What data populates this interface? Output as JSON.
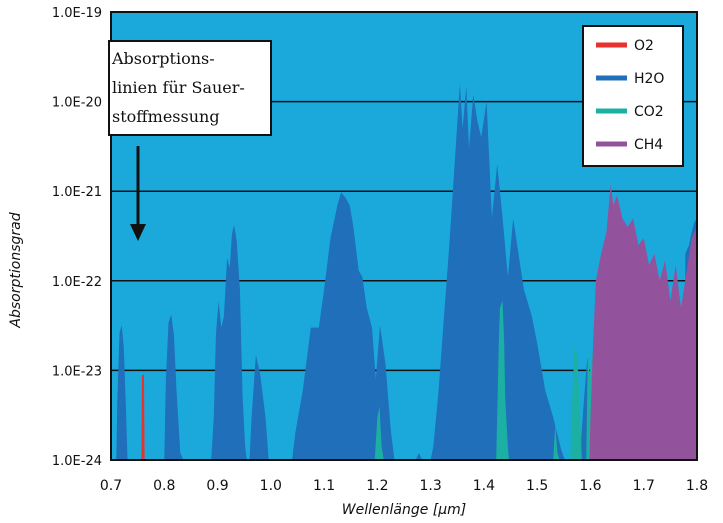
{
  "chart_data": {
    "type": "area",
    "xlabel": "Wellenlänge [μm]",
    "ylabel": "Absorptionsgrad",
    "xlim": [
      0.7,
      1.8
    ],
    "ylim": [
      1e-24,
      1e-19
    ],
    "yscale": "log",
    "x_ticks": [
      "0.7",
      "0.8",
      "0.9",
      "1.0",
      "1.1",
      "1.2",
      "1.3",
      "1.4",
      "1.5",
      "1.6",
      "1.7",
      "1.8"
    ],
    "y_ticks": [
      "1.0E-19",
      "1.0E-20",
      "1.0E-21",
      "1.0E-22",
      "1.0E-23",
      "1.0E-24"
    ],
    "grid": "horizontal",
    "background_color": "#1ba9dc",
    "legend_position": "top-right",
    "legend": [
      {
        "label": "O2",
        "color": "#e8322e"
      },
      {
        "label": "H2O",
        "color": "#1f6fba"
      },
      {
        "label": "CO2",
        "color": "#1bb0a3"
      },
      {
        "label": "CH4",
        "color": "#93539c"
      }
    ],
    "annotation": {
      "lines": [
        "Absorptions-",
        "linien für Sauer-",
        "stoffmessung"
      ],
      "arrow": "down"
    },
    "series": [
      {
        "name": "H2O",
        "color": "#1f6fba",
        "bands": [
          [
            [
              0.71,
              1e-24
            ],
            [
              0.712,
              5e-24
            ],
            [
              0.716,
              2.6e-23
            ],
            [
              0.72,
              3.2e-23
            ],
            [
              0.724,
              1.8e-23
            ],
            [
              0.728,
              4e-24
            ],
            [
              0.731,
              1e-24
            ]
          ],
          [
            [
              0.8,
              1e-24
            ],
            [
              0.803,
              8e-24
            ],
            [
              0.808,
              3.4e-23
            ],
            [
              0.813,
              4.2e-23
            ],
            [
              0.818,
              2.5e-23
            ],
            [
              0.823,
              6e-24
            ],
            [
              0.83,
              1.2e-24
            ],
            [
              0.836,
              1e-24
            ]
          ],
          [
            [
              0.888,
              1e-24
            ],
            [
              0.893,
              3e-24
            ],
            [
              0.897,
              2.5e-23
            ],
            [
              0.902,
              6e-23
            ],
            [
              0.907,
              3e-23
            ],
            [
              0.912,
              4e-23
            ],
            [
              0.918,
              1.8e-22
            ],
            [
              0.923,
              1.4e-22
            ],
            [
              0.927,
              3.3e-22
            ],
            [
              0.931,
              4.2e-22
            ],
            [
              0.936,
              2.8e-22
            ],
            [
              0.942,
              8e-23
            ],
            [
              0.947,
              5e-24
            ],
            [
              0.952,
              1.4e-24
            ],
            [
              0.955,
              1e-24
            ]
          ],
          [
            [
              0.96,
              1e-24
            ],
            [
              0.964,
              3e-24
            ],
            [
              0.972,
              1.5e-23
            ],
            [
              0.98,
              9e-24
            ],
            [
              0.99,
              3e-24
            ],
            [
              0.996,
              1e-24
            ]
          ],
          [
            [
              1.04,
              1e-24
            ],
            [
              1.046,
              2e-24
            ],
            [
              1.06,
              6e-24
            ],
            [
              1.075,
              3e-23
            ],
            [
              1.09,
              3e-23
            ],
            [
              1.1,
              8e-23
            ],
            [
              1.112,
              3e-22
            ],
            [
              1.125,
              7e-22
            ],
            [
              1.132,
              9.7e-22
            ],
            [
              1.14,
              8.5e-22
            ],
            [
              1.148,
              7e-22
            ],
            [
              1.155,
              4e-22
            ],
            [
              1.165,
              1.3e-22
            ],
            [
              1.172,
              1.1e-22
            ],
            [
              1.18,
              5e-23
            ],
            [
              1.19,
              3e-23
            ],
            [
              1.197,
              8e-24
            ],
            [
              1.205,
              3.2e-23
            ],
            [
              1.215,
              1.2e-23
            ],
            [
              1.225,
              2.2e-24
            ],
            [
              1.232,
              1e-24
            ]
          ],
          [
            [
              1.272,
              1e-24
            ],
            [
              1.278,
              1.2e-24
            ],
            [
              1.284,
              1e-24
            ]
          ],
          [
            [
              1.3,
              1e-24
            ],
            [
              1.305,
              1.4e-24
            ],
            [
              1.315,
              6e-24
            ],
            [
              1.325,
              4e-23
            ],
            [
              1.335,
              2.5e-22
            ],
            [
              1.345,
              2e-21
            ],
            [
              1.355,
              1.6e-20
            ],
            [
              1.36,
              5e-21
            ],
            [
              1.367,
              1.5e-20
            ],
            [
              1.372,
              3e-21
            ],
            [
              1.38,
              1.2e-20
            ],
            [
              1.388,
              6e-21
            ],
            [
              1.395,
              4e-21
            ],
            [
              1.405,
              1e-20
            ],
            [
              1.415,
              5e-22
            ],
            [
              1.425,
              2e-21
            ],
            [
              1.435,
              5e-22
            ],
            [
              1.445,
              1.1e-22
            ],
            [
              1.455,
              5e-22
            ],
            [
              1.465,
              2e-22
            ],
            [
              1.475,
              8e-23
            ],
            [
              1.49,
              4e-23
            ],
            [
              1.5,
              2e-23
            ],
            [
              1.515,
              6e-24
            ],
            [
              1.53,
              3e-24
            ],
            [
              1.545,
              1.3e-24
            ],
            [
              1.552,
              1e-24
            ]
          ],
          [
            [
              1.58,
              1e-24
            ],
            [
              1.587,
              4e-24
            ],
            [
              1.594,
              1.4e-23
            ],
            [
              1.6,
              6e-24
            ],
            [
              1.605,
              1e-24
            ]
          ],
          [
            [
              1.778,
              1e-24
            ],
            [
              1.778,
              2e-22
            ],
            [
              1.785,
              2.5e-22
            ],
            [
              1.79,
              3.5e-22
            ],
            [
              1.795,
              4.5e-22
            ],
            [
              1.8,
              5e-22
            ],
            [
              1.8,
              1e-24
            ]
          ]
        ]
      },
      {
        "name": "CO2",
        "color": "#1bb0a3",
        "bands": [
          [
            [
              1.195,
              1e-24
            ],
            [
              1.2,
              3e-24
            ],
            [
              1.204,
              4e-24
            ],
            [
              1.208,
              1.4e-24
            ],
            [
              1.212,
              1e-24
            ]
          ],
          [
            [
              1.423,
              1e-24
            ],
            [
              1.428,
              2e-23
            ],
            [
              1.43,
              5e-23
            ],
            [
              1.435,
              6e-23
            ],
            [
              1.438,
              2e-23
            ],
            [
              1.44,
              5e-24
            ],
            [
              1.445,
              1.4e-24
            ],
            [
              1.447,
              1e-24
            ]
          ],
          [
            [
              1.53,
              1e-24
            ],
            [
              1.534,
              2.5e-24
            ],
            [
              1.538,
              1.2e-24
            ],
            [
              1.542,
              1e-24
            ]
          ],
          [
            [
              1.562,
              1e-24
            ],
            [
              1.566,
              5e-24
            ],
            [
              1.57,
              1.8e-23
            ],
            [
              1.575,
              1.5e-23
            ],
            [
              1.58,
              4e-24
            ],
            [
              1.584,
              1e-24
            ]
          ],
          [
            [
              1.592,
              1e-24
            ],
            [
              1.595,
              1.7e-23
            ],
            [
              1.598,
              9e-24
            ],
            [
              1.604,
              1.6e-23
            ],
            [
              1.608,
              1.2e-23
            ],
            [
              1.61,
              1e-24
            ]
          ]
        ]
      },
      {
        "name": "CH4",
        "color": "#93539c",
        "bands": [
          [
            [
              1.598,
              1e-24
            ],
            [
              1.6,
              3e-24
            ],
            [
              1.605,
              2e-23
            ],
            [
              1.61,
              1e-22
            ],
            [
              1.62,
              2e-22
            ],
            [
              1.63,
              3.5e-22
            ],
            [
              1.638,
              1.2e-21
            ],
            [
              1.643,
              7e-22
            ],
            [
              1.65,
              9e-22
            ],
            [
              1.66,
              5e-22
            ],
            [
              1.67,
              4e-22
            ],
            [
              1.68,
              5e-22
            ],
            [
              1.69,
              2.5e-22
            ],
            [
              1.7,
              3e-22
            ],
            [
              1.71,
              1.5e-22
            ],
            [
              1.72,
              2e-22
            ],
            [
              1.73,
              1e-22
            ],
            [
              1.74,
              1.7e-22
            ],
            [
              1.75,
              6e-23
            ],
            [
              1.76,
              1.5e-22
            ],
            [
              1.77,
              5e-23
            ],
            [
              1.78,
              1.2e-22
            ],
            [
              1.79,
              3e-22
            ],
            [
              1.8,
              4e-22
            ],
            [
              1.8,
              1e-24
            ]
          ]
        ]
      },
      {
        "name": "O2",
        "color": "#e8322e",
        "bands": [
          [
            [
              0.757,
              1e-24
            ],
            [
              0.758,
              8.8e-24
            ],
            [
              0.762,
              9e-24
            ],
            [
              0.763,
              1e-24
            ]
          ]
        ]
      }
    ]
  }
}
